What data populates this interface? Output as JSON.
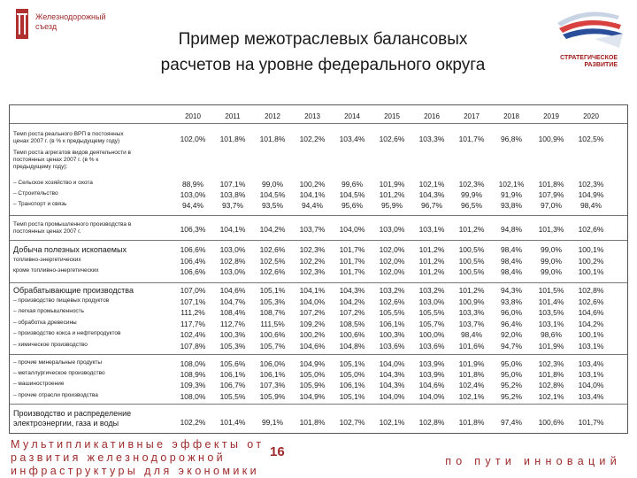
{
  "logo_left": {
    "text_line1": "Железнодорожный",
    "text_line2": "съезд"
  },
  "logo_right": {
    "text_line1": "СТРАТЕГИЧЕСКОЕ",
    "text_line2": "РАЗВИТИЕ"
  },
  "title": {
    "line1": "Пример межотраслевых балансовых",
    "line2": "расчетов на уровне федерального округа"
  },
  "years": [
    "2010",
    "2011",
    "2012",
    "2013",
    "2014",
    "2015",
    "2016",
    "2017",
    "2018",
    "2019",
    "2020"
  ],
  "rows": [
    {
      "label": [
        "Темп роста реального ВРП в постоянных",
        "ценах 2007 г. (в % к предыдущему году)"
      ],
      "values": [
        "102,0%",
        "101,8%",
        "101,8%",
        "102,2%",
        "103,4%",
        "102,6%",
        "103,3%",
        "101,7%",
        "96,8%",
        "100,9%",
        "102,5%"
      ]
    },
    {
      "label": [
        "Темп роста агрегатов видов деятельности в",
        "постоянных ценах 2007 г. (в % к",
        "предыдущему году):"
      ],
      "values": []
    },
    {
      "label": [
        "– Сельское хозяйство и охота"
      ],
      "values": [
        "88,9%",
        "107,1%",
        "99,0%",
        "100,2%",
        "99,6%",
        "101,9%",
        "102,1%",
        "102,3%",
        "102,1%",
        "101,8%",
        "102,3%"
      ]
    },
    {
      "label": [
        "– Строительство"
      ],
      "values": [
        "103,0%",
        "103,8%",
        "104,5%",
        "104,1%",
        "104,5%",
        "101,2%",
        "104,3%",
        "99,9%",
        "91,9%",
        "107,9%",
        "104,9%"
      ]
    },
    {
      "label": [
        "– Транспорт и связь"
      ],
      "values": [
        "94,4%",
        "93,7%",
        "93,5%",
        "94,4%",
        "95,6%",
        "95,9%",
        "96,7%",
        "96,5%",
        "93,8%",
        "97,0%",
        "98,4%"
      ]
    },
    {
      "label": [
        "Темп роста промышленного производства в",
        "постоянных ценах 2007 г."
      ],
      "values": [
        "106,3%",
        "104,1%",
        "104,2%",
        "103,7%",
        "104,0%",
        "103,0%",
        "103,1%",
        "101,2%",
        "94,8%",
        "101,3%",
        "102,6%"
      ]
    },
    {
      "label": [
        "Добыча полезных ископаемых"
      ],
      "big": true,
      "values": [
        "106,6%",
        "103,0%",
        "102,6%",
        "102,3%",
        "101,7%",
        "102,0%",
        "101,2%",
        "100,5%",
        "98,4%",
        "99,0%",
        "100,1%"
      ]
    },
    {
      "label": [
        "топливно-энергетических"
      ],
      "values": [
        "106,4%",
        "102,8%",
        "102,5%",
        "102,2%",
        "101,7%",
        "102,0%",
        "101,2%",
        "100,5%",
        "98,4%",
        "99,0%",
        "100,2%"
      ]
    },
    {
      "label": [
        "кроме топливно-энергетических"
      ],
      "values": [
        "106,6%",
        "103,0%",
        "102,6%",
        "102,3%",
        "101,7%",
        "102,0%",
        "101,2%",
        "100,5%",
        "98,4%",
        "99,0%",
        "100,1%"
      ]
    },
    {
      "label": [
        "Обрабатывающие производства"
      ],
      "big": true,
      "values": [
        "107,0%",
        "104,6%",
        "105,1%",
        "104,1%",
        "104,3%",
        "103,2%",
        "103,2%",
        "101,2%",
        "94,3%",
        "101,5%",
        "102,8%"
      ]
    },
    {
      "label": [
        "– производство пищевых продуктов"
      ],
      "values": [
        "107,1%",
        "104,7%",
        "105,3%",
        "104,0%",
        "104,2%",
        "102,6%",
        "103,0%",
        "100,9%",
        "93,8%",
        "101,4%",
        "102,6%"
      ]
    },
    {
      "label": [
        "– легкая промышленность"
      ],
      "values": [
        "111,2%",
        "108,4%",
        "108,7%",
        "107,2%",
        "107,2%",
        "105,5%",
        "105,5%",
        "103,3%",
        "96,0%",
        "103,5%",
        "104,6%"
      ]
    },
    {
      "label": [
        "– обработка древесины"
      ],
      "values": [
        "117,7%",
        "112,7%",
        "111,5%",
        "109,2%",
        "108,5%",
        "106,1%",
        "105,7%",
        "103,7%",
        "96,4%",
        "103,1%",
        "104,2%"
      ]
    },
    {
      "label": [
        "– производство кокса и нефтепродуктов"
      ],
      "values": [
        "102,4%",
        "100,3%",
        "100,6%",
        "100,2%",
        "100,6%",
        "100,3%",
        "100,0%",
        "98,4%",
        "92,0%",
        "98,6%",
        "100,1%"
      ]
    },
    {
      "label": [
        "– химическое производство"
      ],
      "values": [
        "107,8%",
        "105,3%",
        "105,7%",
        "104,6%",
        "104,8%",
        "103,6%",
        "103,6%",
        "101,6%",
        "94,7%",
        "101,9%",
        "103,1%"
      ]
    },
    {
      "label": [
        "– прочие минеральные продукты"
      ],
      "values": [
        "108,0%",
        "105,6%",
        "106,0%",
        "104,9%",
        "105,1%",
        "104,0%",
        "103,9%",
        "101,9%",
        "95,0%",
        "102,3%",
        "103,4%"
      ]
    },
    {
      "label": [
        "– металлургическое производство"
      ],
      "values": [
        "108,9%",
        "106,1%",
        "106,1%",
        "105,0%",
        "105,0%",
        "104,3%",
        "103,9%",
        "101,8%",
        "95,0%",
        "101,8%",
        "103,1%"
      ]
    },
    {
      "label": [
        "– машиностроение"
      ],
      "values": [
        "109,3%",
        "106,7%",
        "107,3%",
        "105,9%",
        "106,1%",
        "104,3%",
        "104,6%",
        "102,4%",
        "95,2%",
        "102,8%",
        "104,0%"
      ]
    },
    {
      "label": [
        "– прочие отрасли производства"
      ],
      "values": [
        "108,0%",
        "105,5%",
        "105,9%",
        "104,9%",
        "105,1%",
        "104,0%",
        "104,0%",
        "102,1%",
        "95,2%",
        "102,1%",
        "103,4%"
      ]
    },
    {
      "label": [
        "Производство и распределение",
        "электроэнергии, газа и воды"
      ],
      "big": true,
      "values": [
        "102,2%",
        "101,4%",
        "99,1%",
        "101,8%",
        "102,7%",
        "102,1%",
        "102,8%",
        "101,8%",
        "97,4%",
        "100,6%",
        "101,7%"
      ]
    }
  ],
  "footer": {
    "left_line1": "Мультипликативные эффекты от",
    "left_line2": "развития железнодорожной",
    "left_line3": "инфраструктуры для экономики",
    "page_number": "16",
    "right": "по пути инноваций"
  },
  "colors": {
    "accent": "#9e2a2a",
    "border": "#555555"
  }
}
